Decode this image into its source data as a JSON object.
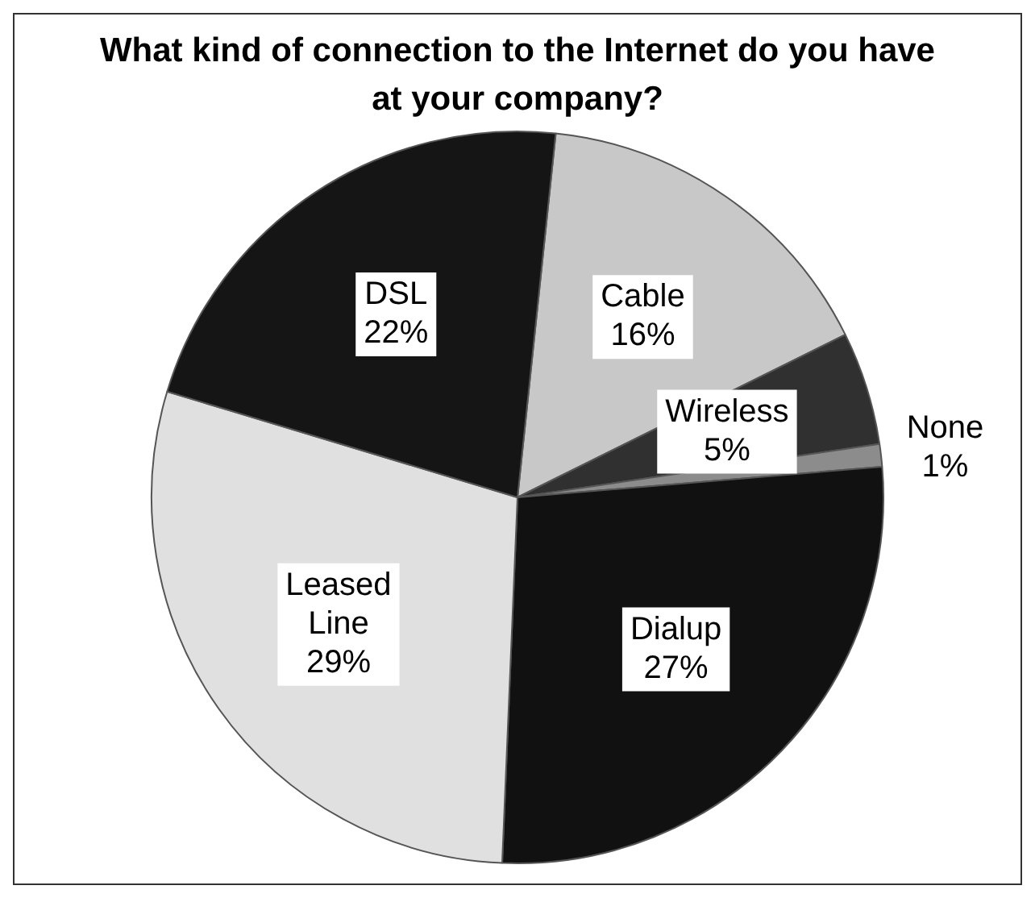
{
  "chart_data": {
    "type": "pie",
    "title": "What kind of connection to the Internet do you have at your company?",
    "categories": [
      "Cable",
      "Wireless",
      "None",
      "Dialup",
      "Leased Line",
      "DSL"
    ],
    "values": [
      16,
      5,
      1,
      27,
      29,
      22
    ],
    "colors": [
      "#c8c8c8",
      "#303030",
      "#8c8c8c",
      "#111111",
      "#e0e0e0",
      "#151515"
    ],
    "value_labels": [
      "16%",
      "5%",
      "1%",
      "27%",
      "29%",
      "22%"
    ],
    "legend": false
  }
}
